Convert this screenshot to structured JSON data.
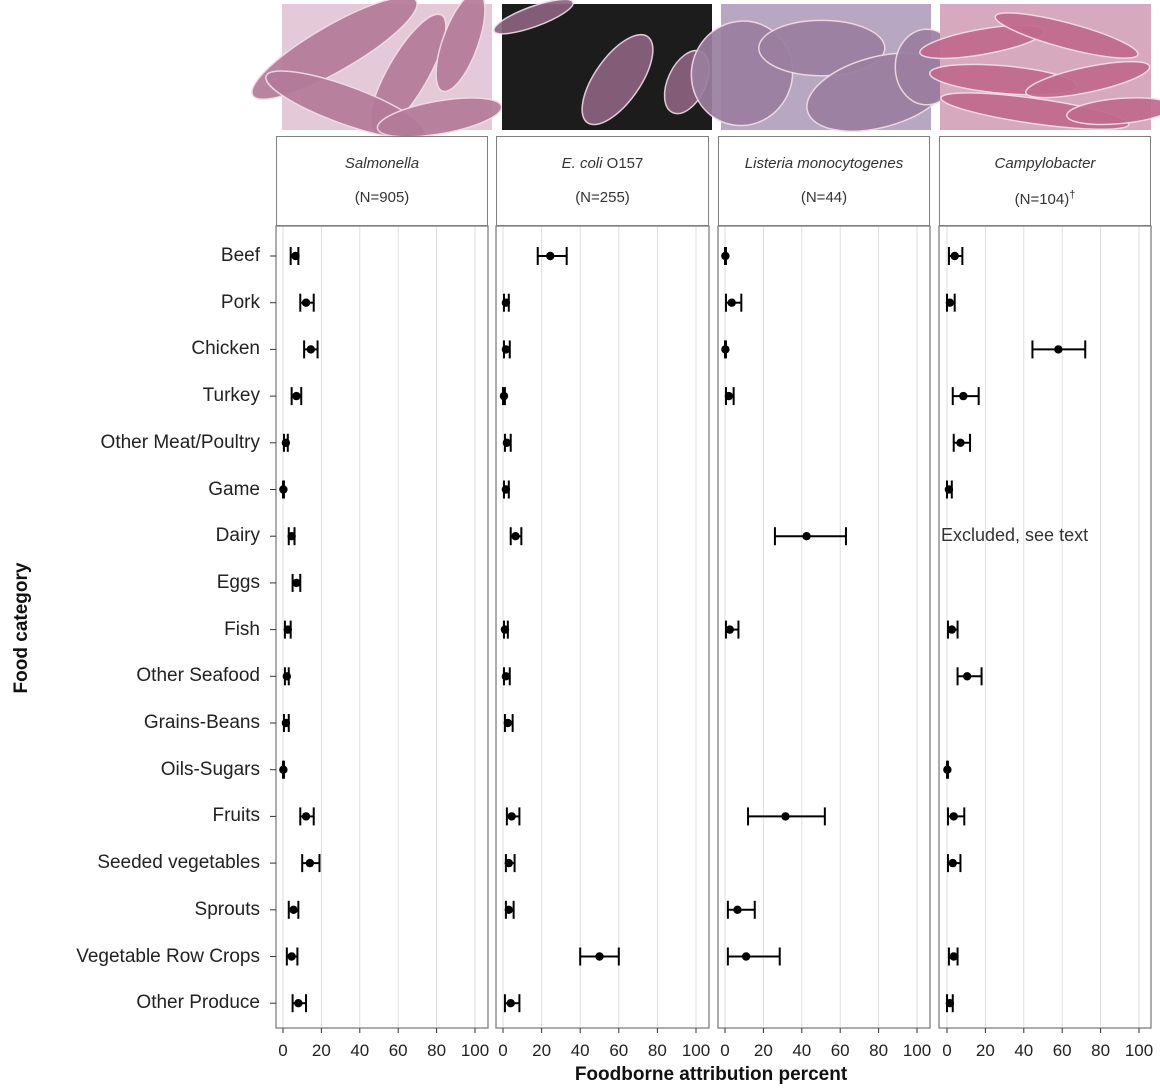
{
  "chart_data": {
    "type": "scatter",
    "subtype": "point-with-error-bars, faceted",
    "xlabel": "Foodborne attribution percent",
    "ylabel": "Food category",
    "xlim": [
      0,
      100
    ],
    "x_ticks": [
      0,
      20,
      40,
      60,
      80,
      100
    ],
    "grid": "vertical gridlines at each tick",
    "categories": [
      "Beef",
      "Pork",
      "Chicken",
      "Turkey",
      "Other Meat/Poultry",
      "Game",
      "Dairy",
      "Eggs",
      "Fish",
      "Other Seafood",
      "Grains-Beans",
      "Oils-Sugars",
      "Fruits",
      "Seeded vegetables",
      "Sprouts",
      "Vegetable Row Crops",
      "Other Produce"
    ],
    "facets": [
      {
        "name": "Salmonella",
        "name_italic": true,
        "name_suffix": "",
        "n_label": "(N=905)",
        "n_mark": "",
        "points": [
          {
            "category": "Beef",
            "est": 6.5,
            "lo": 4,
            "hi": 8
          },
          {
            "category": "Pork",
            "est": 12,
            "lo": 9,
            "hi": 16
          },
          {
            "category": "Chicken",
            "est": 14.5,
            "lo": 11,
            "hi": 18
          },
          {
            "category": "Turkey",
            "est": 7,
            "lo": 4.5,
            "hi": 9.5
          },
          {
            "category": "Other Meat/Poultry",
            "est": 1.5,
            "lo": 0.5,
            "hi": 2.5
          },
          {
            "category": "Game",
            "est": 0.2,
            "lo": 0,
            "hi": 0.5
          },
          {
            "category": "Dairy",
            "est": 4.5,
            "lo": 3,
            "hi": 6
          },
          {
            "category": "Eggs",
            "est": 7,
            "lo": 5,
            "hi": 9
          },
          {
            "category": "Fish",
            "est": 2.5,
            "lo": 1,
            "hi": 4
          },
          {
            "category": "Other Seafood",
            "est": 2,
            "lo": 1,
            "hi": 3
          },
          {
            "category": "Grains-Beans",
            "est": 1.5,
            "lo": 0.5,
            "hi": 3
          },
          {
            "category": "Oils-Sugars",
            "est": 0.2,
            "lo": 0,
            "hi": 0.5
          },
          {
            "category": "Fruits",
            "est": 12,
            "lo": 9,
            "hi": 16
          },
          {
            "category": "Seeded vegetables",
            "est": 14,
            "lo": 10,
            "hi": 19
          },
          {
            "category": "Sprouts",
            "est": 5.5,
            "lo": 3,
            "hi": 8
          },
          {
            "category": "Vegetable Row Crops",
            "est": 4.5,
            "lo": 2,
            "hi": 7.5
          },
          {
            "category": "Other Produce",
            "est": 8,
            "lo": 5,
            "hi": 12
          }
        ]
      },
      {
        "name": "E. coli",
        "name_italic": true,
        "name_suffix": " O157",
        "n_label": "(N=255)",
        "n_mark": "",
        "points": [
          {
            "category": "Beef",
            "est": 24.5,
            "lo": 18,
            "hi": 33
          },
          {
            "category": "Pork",
            "est": 1.5,
            "lo": 0.5,
            "hi": 3
          },
          {
            "category": "Chicken",
            "est": 1.5,
            "lo": 0.5,
            "hi": 3.5
          },
          {
            "category": "Turkey",
            "est": 0.5,
            "lo": 0,
            "hi": 1
          },
          {
            "category": "Other Meat/Poultry",
            "est": 2,
            "lo": 1,
            "hi": 4
          },
          {
            "category": "Game",
            "est": 1.5,
            "lo": 0.5,
            "hi": 3
          },
          {
            "category": "Dairy",
            "est": 6.5,
            "lo": 4,
            "hi": 9.5
          },
          {
            "category": "Fish",
            "est": 1,
            "lo": 0.5,
            "hi": 2.5
          },
          {
            "category": "Other Seafood",
            "est": 1.5,
            "lo": 0.5,
            "hi": 3.5
          },
          {
            "category": "Grains-Beans",
            "est": 2.5,
            "lo": 1,
            "hi": 5
          },
          {
            "category": "Fruits",
            "est": 4.5,
            "lo": 2,
            "hi": 8.5
          },
          {
            "category": "Seeded vegetables",
            "est": 3,
            "lo": 1.5,
            "hi": 6
          },
          {
            "category": "Sprouts",
            "est": 3,
            "lo": 1.5,
            "hi": 5.5
          },
          {
            "category": "Vegetable Row Crops",
            "est": 50,
            "lo": 40,
            "hi": 60
          },
          {
            "category": "Other Produce",
            "est": 4,
            "lo": 1,
            "hi": 8.5
          }
        ]
      },
      {
        "name": "Listeria monocytogenes",
        "name_italic": true,
        "name_suffix": "",
        "n_label": "(N=44)",
        "n_mark": "",
        "points": [
          {
            "category": "Beef",
            "est": 0.2,
            "lo": 0,
            "hi": 0.5
          },
          {
            "category": "Pork",
            "est": 3.5,
            "lo": 0.5,
            "hi": 8.5
          },
          {
            "category": "Chicken",
            "est": 0.2,
            "lo": 0,
            "hi": 0.5
          },
          {
            "category": "Turkey",
            "est": 2,
            "lo": 0.5,
            "hi": 4.5
          },
          {
            "category": "Dairy",
            "est": 42.5,
            "lo": 26,
            "hi": 63
          },
          {
            "category": "Fish",
            "est": 2.5,
            "lo": 0.5,
            "hi": 7
          },
          {
            "category": "Fruits",
            "est": 31.5,
            "lo": 12,
            "hi": 52
          },
          {
            "category": "Sprouts",
            "est": 6.5,
            "lo": 1.5,
            "hi": 15.5
          },
          {
            "category": "Vegetable Row Crops",
            "est": 11,
            "lo": 1.5,
            "hi": 28.5
          }
        ]
      },
      {
        "name": "Campylobacter",
        "name_italic": true,
        "name_suffix": "",
        "n_label": "(N=104)",
        "n_mark": "†",
        "annotation": {
          "category": "Dairy",
          "text": "Excluded, see text"
        },
        "points": [
          {
            "category": "Beef",
            "est": 4,
            "lo": 1,
            "hi": 8
          },
          {
            "category": "Pork",
            "est": 1.5,
            "lo": 0,
            "hi": 4
          },
          {
            "category": "Chicken",
            "est": 58,
            "lo": 44.5,
            "hi": 72
          },
          {
            "category": "Turkey",
            "est": 8.5,
            "lo": 3,
            "hi": 16.5
          },
          {
            "category": "Other Meat/Poultry",
            "est": 7,
            "lo": 3.5,
            "hi": 12
          },
          {
            "category": "Game",
            "est": 1,
            "lo": 0,
            "hi": 2.5
          },
          {
            "category": "Fish",
            "est": 2.5,
            "lo": 0.5,
            "hi": 5.5
          },
          {
            "category": "Other Seafood",
            "est": 10.5,
            "lo": 5.5,
            "hi": 18
          },
          {
            "category": "Oils-Sugars",
            "est": 0.2,
            "lo": 0,
            "hi": 0.5
          },
          {
            "category": "Fruits",
            "est": 3.5,
            "lo": 0.5,
            "hi": 9
          },
          {
            "category": "Seeded vegetables",
            "est": 3,
            "lo": 0.5,
            "hi": 7
          },
          {
            "category": "Sprouts"
          },
          {
            "category": "Vegetable Row Crops",
            "est": 3.5,
            "lo": 1,
            "hi": 5.5
          },
          {
            "category": "Other Produce",
            "est": 1.5,
            "lo": 0,
            "hi": 3
          }
        ]
      }
    ]
  },
  "colors": {
    "marks": "#000000",
    "grid": "#dedede",
    "panel_border": "#7f7f7f",
    "photo_tints": [
      "#b47a99",
      "#8c6380",
      "#9b7ea0",
      "#c06a8e"
    ]
  }
}
